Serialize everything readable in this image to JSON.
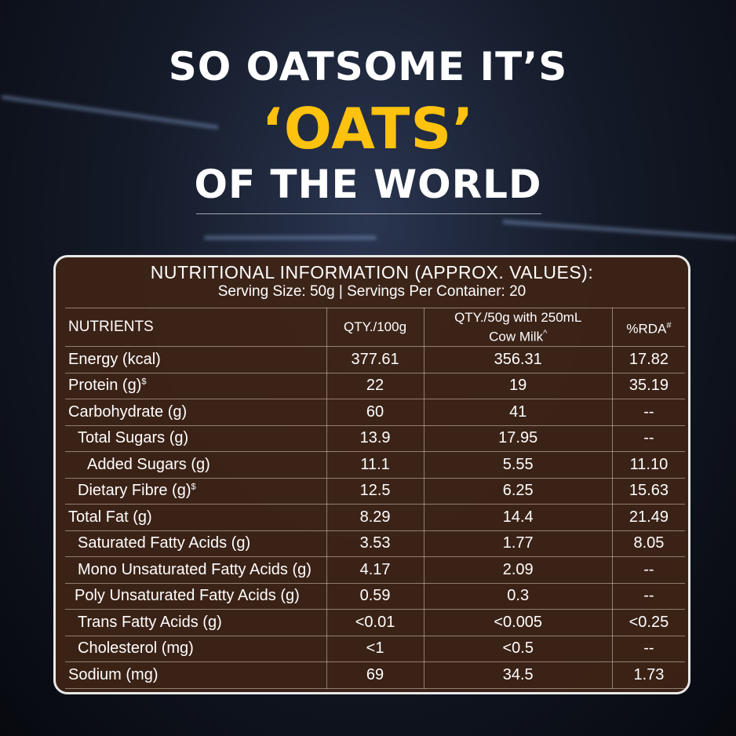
{
  "headline": {
    "line1": "SO OATSOME IT’S",
    "highlight": "‘OATS’",
    "line3": "OF THE WORLD"
  },
  "panel": {
    "title": "NUTRITIONAL INFORMATION (APPROX. VALUES):",
    "serving": "Serving Size: 50g  |  Servings Per Container: 20"
  },
  "table": {
    "header": [
      {
        "text": "NUTRIENTS"
      },
      {
        "text": "QTY./100g"
      },
      {
        "text": "QTY./50g with 250mL Cow Milk",
        "sup": "^"
      },
      {
        "text": "%RDA",
        "sup": "#"
      }
    ],
    "rows": [
      {
        "name": "Energy (kcal)",
        "values": [
          "377.61",
          "356.31",
          "17.82"
        ]
      },
      {
        "name": "Protein (g)",
        "sup": "$",
        "values": [
          "22",
          "19",
          "35.19"
        ]
      },
      {
        "name": "Carbohydrate (g)",
        "values": [
          "60",
          "41",
          "--"
        ]
      },
      {
        "name": "Total Sugars (g)",
        "values": [
          "13.9",
          "17.95",
          "--"
        ]
      },
      {
        "name": "Added Sugars (g)",
        "values": [
          "11.1",
          "5.55",
          "11.10"
        ]
      },
      {
        "name": "Dietary Fibre (g)",
        "sup": "$",
        "values": [
          "12.5",
          "6.25",
          "15.63"
        ]
      },
      {
        "name": "Total Fat (g)",
        "values": [
          "8.29",
          "14.4",
          "21.49"
        ]
      },
      {
        "name": "Saturated Fatty Acids (g)",
        "values": [
          "3.53",
          "1.77",
          "8.05"
        ]
      },
      {
        "name": "Mono Unsaturated Fatty Acids (g)",
        "values": [
          "4.17",
          "2.09",
          "--"
        ]
      },
      {
        "name": "Poly Unsaturated Fatty Acids (g)",
        "values": [
          "0.59",
          "0.3",
          "--"
        ]
      },
      {
        "name": "Trans Fatty Acids (g)",
        "values": [
          "<0.01",
          "<0.005",
          "<0.25"
        ]
      },
      {
        "name": "Cholesterol (mg)",
        "values": [
          "<1",
          "<0.5",
          "--"
        ]
      },
      {
        "name": "Sodium (mg)",
        "values": [
          "69",
          "34.5",
          "1.73"
        ]
      }
    ]
  }
}
